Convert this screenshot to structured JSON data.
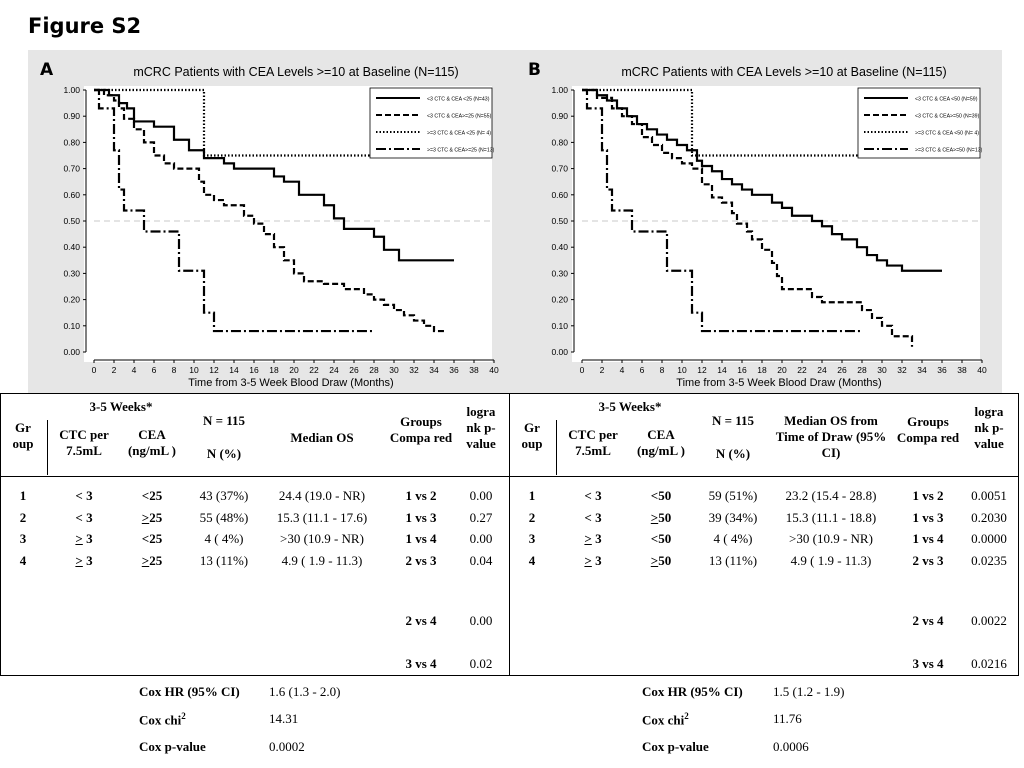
{
  "figure_title": "Figure S2",
  "panels": [
    {
      "letter": "A",
      "chart_data": {
        "type": "line",
        "title": "mCRC Patients with CEA Levels >=10 at Baseline (N=115)",
        "xlabel": "Time from 3-5 Week Blood Draw (Months)",
        "ylabel": "",
        "xlim": [
          0,
          40
        ],
        "ylim": [
          0,
          1
        ],
        "xticks": [
          "0",
          "2",
          "4",
          "6",
          "8",
          "10",
          "12",
          "14",
          "16",
          "18",
          "20",
          "22",
          "24",
          "26",
          "28",
          "30",
          "32",
          "34",
          "36",
          "38",
          "40"
        ],
        "yticks": [
          "0.00",
          "0.10",
          "0.20",
          "0.30",
          "0.40",
          "0.50",
          "0.60",
          "0.70",
          "0.80",
          "0.90",
          "1.00"
        ],
        "reference_line": 0.5,
        "legend_position": "top-right",
        "series": [
          {
            "name": "<3 CTC & CEA <25 (N=43)",
            "style": "solid",
            "points": [
              [
                0,
                1.0
              ],
              [
                1.5,
                0.98
              ],
              [
                2.5,
                0.95
              ],
              [
                3.3,
                0.93
              ],
              [
                4,
                0.88
              ],
              [
                6,
                0.86
              ],
              [
                8,
                0.81
              ],
              [
                9.5,
                0.77
              ],
              [
                11,
                0.74
              ],
              [
                13,
                0.72
              ],
              [
                14,
                0.7
              ],
              [
                18,
                0.67
              ],
              [
                19,
                0.65
              ],
              [
                20.5,
                0.6
              ],
              [
                23,
                0.56
              ],
              [
                24,
                0.51
              ],
              [
                25,
                0.47
              ],
              [
                28,
                0.44
              ],
              [
                29,
                0.39
              ],
              [
                30.5,
                0.35
              ],
              [
                36,
                0.35
              ]
            ]
          },
          {
            "name": "<3 CTC & CEA>=25 (N=55)",
            "style": "dashed",
            "points": [
              [
                0,
                1.0
              ],
              [
                1,
                0.98
              ],
              [
                2,
                0.96
              ],
              [
                2.5,
                0.93
              ],
              [
                3,
                0.89
              ],
              [
                4,
                0.85
              ],
              [
                5,
                0.8
              ],
              [
                6,
                0.75
              ],
              [
                7,
                0.72
              ],
              [
                8,
                0.7
              ],
              [
                10.5,
                0.65
              ],
              [
                11,
                0.6
              ],
              [
                12,
                0.58
              ],
              [
                13,
                0.56
              ],
              [
                15,
                0.52
              ],
              [
                16,
                0.49
              ],
              [
                17,
                0.45
              ],
              [
                18,
                0.4
              ],
              [
                19,
                0.35
              ],
              [
                20,
                0.3
              ],
              [
                21,
                0.27
              ],
              [
                23,
                0.26
              ],
              [
                25,
                0.24
              ],
              [
                27,
                0.22
              ],
              [
                28,
                0.2
              ],
              [
                29,
                0.18
              ],
              [
                30,
                0.16
              ],
              [
                31,
                0.14
              ],
              [
                32,
                0.12
              ],
              [
                33,
                0.1
              ],
              [
                34,
                0.08
              ],
              [
                35,
                0.08
              ]
            ]
          },
          {
            "name": ">=3 CTC & CEA <25 (N= 4)",
            "style": "dotted",
            "points": [
              [
                0,
                1.0
              ],
              [
                11,
                1.0
              ],
              [
                11,
                0.75
              ],
              [
                36,
                0.75
              ]
            ]
          },
          {
            "name": ">=3 CTC & CEA>=25 (N=13)",
            "style": "dash-dot",
            "points": [
              [
                0,
                1.0
              ],
              [
                0.5,
                0.93
              ],
              [
                1.5,
                0.93
              ],
              [
                2,
                0.77
              ],
              [
                2.5,
                0.62
              ],
              [
                3,
                0.54
              ],
              [
                5,
                0.54
              ],
              [
                5,
                0.46
              ],
              [
                8.5,
                0.46
              ],
              [
                8.5,
                0.31
              ],
              [
                10.5,
                0.31
              ],
              [
                11,
                0.15
              ],
              [
                12,
                0.08
              ],
              [
                28,
                0.08
              ]
            ]
          }
        ]
      }
    },
    {
      "letter": "B",
      "chart_data": {
        "type": "line",
        "title": "mCRC Patients with CEA Levels >=10 at Baseline (N=115)",
        "xlabel": "Time from 3-5 Week Blood Draw (Months)",
        "ylabel": "",
        "xlim": [
          0,
          40
        ],
        "ylim": [
          0,
          1
        ],
        "xticks": [
          "0",
          "2",
          "4",
          "6",
          "8",
          "10",
          "12",
          "14",
          "16",
          "18",
          "20",
          "22",
          "24",
          "26",
          "28",
          "30",
          "32",
          "34",
          "36",
          "38",
          "40"
        ],
        "yticks": [
          "0.00",
          "0.10",
          "0.20",
          "0.30",
          "0.40",
          "0.50",
          "0.60",
          "0.70",
          "0.80",
          "0.90",
          "1.00"
        ],
        "reference_line": 0.5,
        "legend_position": "top-right",
        "series": [
          {
            "name": "<3 CTC & CEA <50 (N=59)",
            "style": "solid",
            "points": [
              [
                0,
                1.0
              ],
              [
                1.5,
                0.98
              ],
              [
                2.5,
                0.96
              ],
              [
                3.5,
                0.93
              ],
              [
                4.5,
                0.9
              ],
              [
                5.5,
                0.87
              ],
              [
                6.5,
                0.85
              ],
              [
                7.5,
                0.83
              ],
              [
                8.5,
                0.81
              ],
              [
                9.5,
                0.79
              ],
              [
                10.5,
                0.77
              ],
              [
                11.5,
                0.73
              ],
              [
                12,
                0.71
              ],
              [
                13,
                0.69
              ],
              [
                14,
                0.66
              ],
              [
                15,
                0.64
              ],
              [
                16,
                0.62
              ],
              [
                17,
                0.6
              ],
              [
                19,
                0.57
              ],
              [
                20,
                0.55
              ],
              [
                21,
                0.52
              ],
              [
                23,
                0.5
              ],
              [
                24,
                0.48
              ],
              [
                25,
                0.45
              ],
              [
                26,
                0.43
              ],
              [
                27.5,
                0.4
              ],
              [
                28.5,
                0.37
              ],
              [
                29.5,
                0.35
              ],
              [
                30.5,
                0.33
              ],
              [
                32,
                0.31
              ],
              [
                36,
                0.31
              ]
            ]
          },
          {
            "name": "<3 CTC & CEA>=50 (N=39)",
            "style": "dashed",
            "points": [
              [
                0,
                1.0
              ],
              [
                1.5,
                0.97
              ],
              [
                3,
                0.93
              ],
              [
                4,
                0.9
              ],
              [
                5,
                0.87
              ],
              [
                6,
                0.82
              ],
              [
                7,
                0.79
              ],
              [
                8,
                0.76
              ],
              [
                9,
                0.74
              ],
              [
                10,
                0.72
              ],
              [
                11,
                0.7
              ],
              [
                12,
                0.64
              ],
              [
                13,
                0.59
              ],
              [
                14,
                0.57
              ],
              [
                15,
                0.53
              ],
              [
                15.5,
                0.49
              ],
              [
                16.5,
                0.46
              ],
              [
                17,
                0.43
              ],
              [
                18,
                0.39
              ],
              [
                19,
                0.34
              ],
              [
                19.5,
                0.29
              ],
              [
                20,
                0.24
              ],
              [
                23,
                0.21
              ],
              [
                24,
                0.19
              ],
              [
                28,
                0.16
              ],
              [
                29,
                0.13
              ],
              [
                30,
                0.1
              ],
              [
                31,
                0.06
              ],
              [
                33,
                0.02
              ]
            ]
          },
          {
            "name": ">=3 CTC & CEA <50 (N= 4)",
            "style": "dotted",
            "points": [
              [
                0,
                1.0
              ],
              [
                11,
                1.0
              ],
              [
                11,
                0.75
              ],
              [
                36,
                0.75
              ]
            ]
          },
          {
            "name": ">=3 CTC & CEA>=50 (N=13)",
            "style": "dash-dot",
            "points": [
              [
                0,
                1.0
              ],
              [
                0.5,
                0.93
              ],
              [
                1.5,
                0.93
              ],
              [
                2,
                0.77
              ],
              [
                2.5,
                0.62
              ],
              [
                3,
                0.54
              ],
              [
                5,
                0.54
              ],
              [
                5,
                0.46
              ],
              [
                8.5,
                0.46
              ],
              [
                8.5,
                0.31
              ],
              [
                10.5,
                0.31
              ],
              [
                11,
                0.15
              ],
              [
                12,
                0.08
              ],
              [
                28,
                0.08
              ]
            ]
          }
        ]
      }
    }
  ],
  "tableA": {
    "headers": {
      "weeks": "3-5 Weeks*",
      "group": "Gr oup",
      "ctc": "CTC per 7.5mL",
      "cea": "CEA (ng/mL )",
      "n_top": "N = 115",
      "n_bottom": "N  (%)",
      "median": "Median OS",
      "groups": "Groups Compa red",
      "pval": "logra nk p-value"
    },
    "rows": [
      {
        "group": "1",
        "ctc": "< 3",
        "cea": "<25",
        "n": "43  (37%)",
        "median": "24.4  (19.0 -  NR)",
        "cmp": "1 vs 2",
        "p": "0.00"
      },
      {
        "group": "2",
        "ctc": "< 3",
        "cea": ">25",
        "n": "55  (48%)",
        "median": "15.3  (11.1 - 17.6)",
        "cmp": "1 vs 3",
        "p": "0.27"
      },
      {
        "group": "3",
        "ctc": "> 3",
        "cea": "<25",
        "n": "4  ( 4%)",
        "median": ">30  (10.9 -  NR)",
        "cmp": "1 vs 4",
        "p": "0.00"
      },
      {
        "group": "4",
        "ctc": "> 3",
        "cea": ">25",
        "n": "13  (11%)",
        "median": "4.9  ( 1.9 - 11.3)",
        "cmp": "2 vs 3",
        "p": "0.04"
      }
    ],
    "extra_rows": [
      {
        "cmp": "2 vs 4",
        "p": "0.00"
      },
      {
        "cmp": "3 vs 4",
        "p": "0.02"
      }
    ],
    "footer": [
      {
        "label": "Cox HR (95% CI)",
        "value": "1.6  (1.3 - 2.0)"
      },
      {
        "label": "Cox chi",
        "sup": "2",
        "value": "14.31"
      },
      {
        "label": "Cox p-value",
        "value": "0.0002"
      }
    ]
  },
  "tableB": {
    "headers": {
      "weeks": "3-5 Weeks*",
      "group": "Gr oup",
      "ctc": "CTC per 7.5mL",
      "cea": "CEA (ng/mL )",
      "n_top": "N = 115",
      "n_bottom": "N  (%)",
      "median": "Median OS from Time of Draw (95% CI)",
      "groups": "Groups Compa red",
      "pval": "logra nk p-value"
    },
    "rows": [
      {
        "group": "1",
        "ctc": "< 3",
        "cea": "<50",
        "n": "59  (51%)",
        "median": "23.2  (15.4 - 28.8)",
        "cmp": "1 vs 2",
        "p": "0.0051"
      },
      {
        "group": "2",
        "ctc": "< 3",
        "cea": ">50",
        "n": "39  (34%)",
        "median": "15.3  (11.1 - 18.8)",
        "cmp": "1 vs 3",
        "p": "0.2030"
      },
      {
        "group": "3",
        "ctc": "> 3",
        "cea": "<50",
        "n": "4  ( 4%)",
        "median": ">30  (10.9 -  NR)",
        "cmp": "1 vs 4",
        "p": "0.0000"
      },
      {
        "group": "4",
        "ctc": "> 3",
        "cea": ">50",
        "n": "13  (11%)",
        "median": "4.9  ( 1.9 - 11.3)",
        "cmp": "2 vs 3",
        "p": "0.0235"
      }
    ],
    "extra_rows": [
      {
        "cmp": "2 vs 4",
        "p": "0.0022"
      },
      {
        "cmp": "3 vs 4",
        "p": "0.0216"
      }
    ],
    "footer": [
      {
        "label": "Cox HR (95% CI)",
        "value": "1.5  (1.2 - 1.9)"
      },
      {
        "label": "Cox chi",
        "sup": "2",
        "value": "11.76"
      },
      {
        "label": "Cox p-value",
        "value": "0.0006"
      }
    ]
  }
}
